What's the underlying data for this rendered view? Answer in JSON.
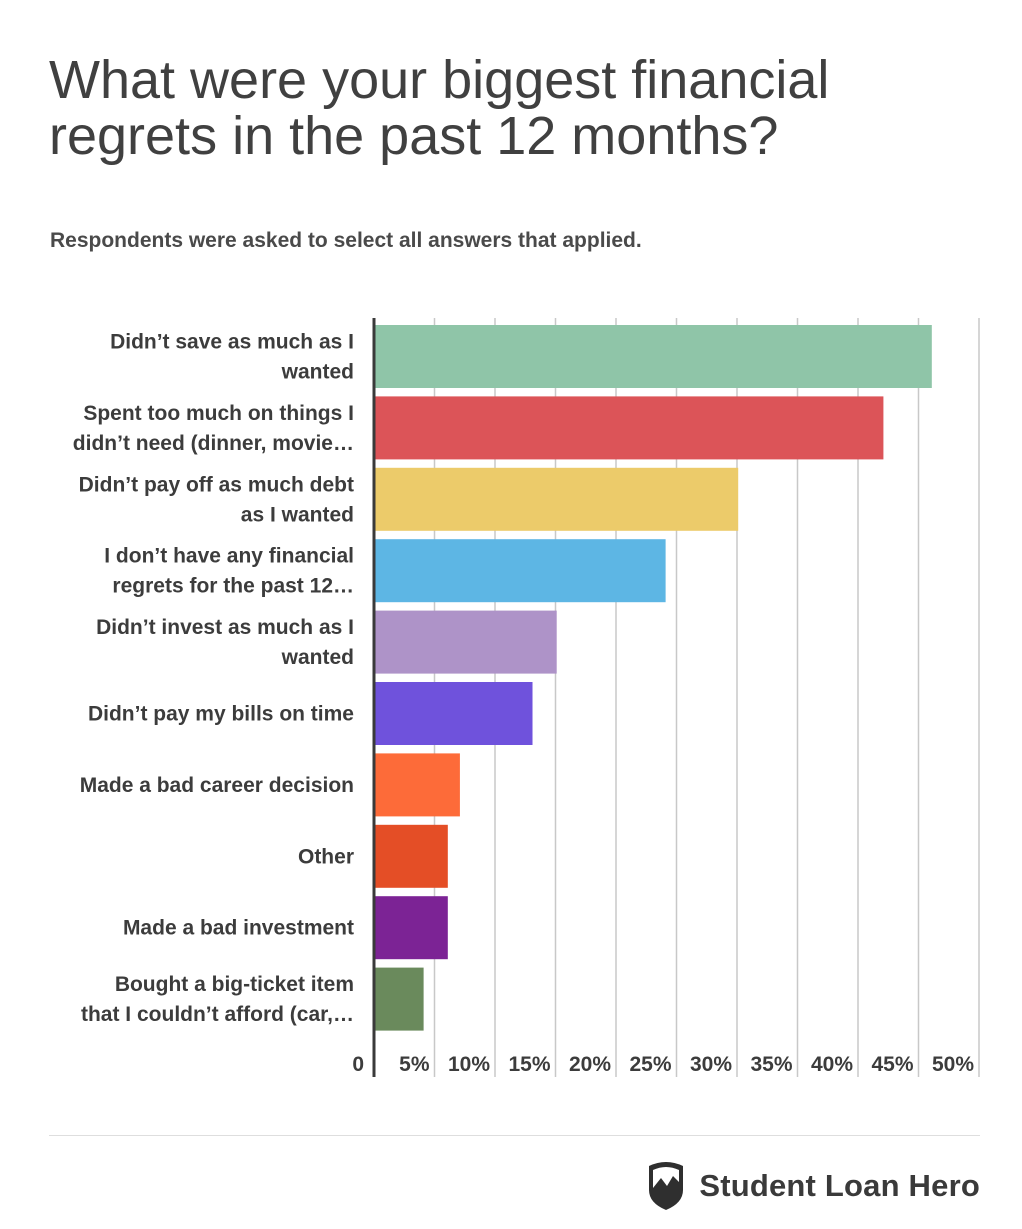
{
  "title": "What were your biggest financial regrets in the past 12 months?",
  "subtitle": "Respondents were asked to select all answers that applied.",
  "brand": {
    "name": "Student Loan Hero",
    "logo_icon": "shield-mountain-icon"
  },
  "chart_data": {
    "type": "bar",
    "orientation": "horizontal",
    "categories": [
      [
        "Didn’t save as much as I",
        "wanted"
      ],
      [
        "Spent too much on things I",
        "didn’t need (dinner, movie…"
      ],
      [
        "Didn’t pay off as much debt",
        "as I wanted"
      ],
      [
        "I don’t have any financial",
        "regrets for the past 12…"
      ],
      [
        "Didn’t invest as much as I",
        "wanted"
      ],
      [
        "Didn’t pay my bills on time"
      ],
      [
        "Made a bad career decision"
      ],
      [
        "Other"
      ],
      [
        "Made a bad investment"
      ],
      [
        "Bought a big-ticket item",
        "that I couldn’t afford (car,…"
      ]
    ],
    "values": [
      46.1,
      42.1,
      30.1,
      24.1,
      15.1,
      13.1,
      7.1,
      6.1,
      6.1,
      4.1
    ],
    "colors": [
      "#8fc5a8",
      "#dc5458",
      "#eccb6a",
      "#5db6e4",
      "#ae93c8",
      "#6f52dc",
      "#fd6b39",
      "#e44e26",
      "#7c2395",
      "#6a8a5c"
    ],
    "xlim": [
      0,
      50
    ],
    "ticks": [
      0,
      5,
      10,
      15,
      20,
      25,
      30,
      35,
      40,
      45,
      50
    ],
    "tick_labels": [
      "0",
      "5%",
      "10%",
      "15%",
      "20%",
      "25%",
      "30%",
      "35%",
      "40%",
      "45%",
      "50%"
    ],
    "grid": true
  }
}
